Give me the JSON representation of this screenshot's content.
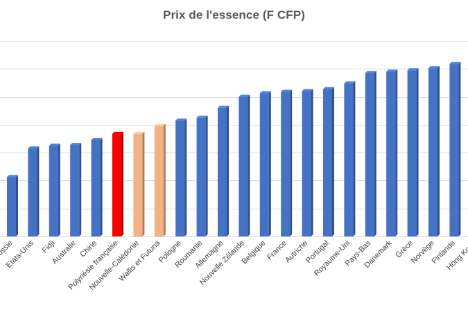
{
  "chart_data": {
    "type": "bar",
    "title": "Prix de l'essence (F CFP)",
    "xlabel": "",
    "ylabel": "",
    "grid": true,
    "legend": "none",
    "ylim": [
      0,
      280
    ],
    "categories": [
      "Russie",
      "Etats-Unis",
      "Fidji",
      "Australie",
      "Chine",
      "Polynésie française",
      "Nouvelle-Calédonie",
      "Wallis et Futuna",
      "Pologne",
      "Roumanie",
      "Allemagne",
      "Nouvelle Zélande",
      "Belgique",
      "France",
      "Autriche",
      "Portugal",
      "Royaume-Uni",
      "Pays-Bas",
      "Danemark",
      "Grèce",
      "Norvège",
      "Finlande",
      "Hong Kong"
    ],
    "values": [
      85,
      126,
      130,
      131,
      138,
      147,
      147,
      158,
      166,
      170,
      184,
      200,
      205,
      207,
      208,
      211,
      219,
      234,
      236,
      238,
      241,
      247,
      277
    ],
    "colors": [
      "#4472c4",
      "#4472c4",
      "#4472c4",
      "#4472c4",
      "#4472c4",
      "#ff0000",
      "#f4b183",
      "#f4b183",
      "#4472c4",
      "#4472c4",
      "#4472c4",
      "#4472c4",
      "#4472c4",
      "#4472c4",
      "#4472c4",
      "#4472c4",
      "#4472c4",
      "#4472c4",
      "#4472c4",
      "#4472c4",
      "#4472c4",
      "#4472c4",
      "#4472c4"
    ],
    "gridline_color": "#d9d9d9"
  }
}
